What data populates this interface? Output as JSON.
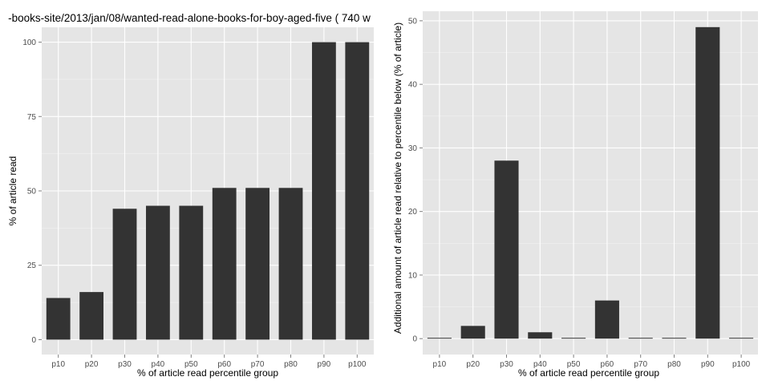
{
  "chart_data": [
    {
      "type": "bar",
      "title": "-books-site/2013/jan/08/wanted-read-alone-books-for-boy-aged-five ( 740 w",
      "xlabel": "% of article read percentile group",
      "ylabel": "% of article read",
      "categories": [
        "p10",
        "p20",
        "p30",
        "p40",
        "p50",
        "p60",
        "p70",
        "p80",
        "p90",
        "p100"
      ],
      "values": [
        14,
        16,
        44,
        45,
        45,
        51,
        51,
        51,
        100,
        100
      ],
      "ylim": [
        -5,
        105
      ],
      "yticks": [
        0,
        25,
        50,
        75,
        100
      ],
      "grid": true,
      "colors": {
        "bar": "#333333",
        "panel": "#e5e5e5"
      }
    },
    {
      "type": "bar",
      "title": "",
      "xlabel": "% of article read percentile group",
      "ylabel": "Additional amount of article read relative to percentile below (% of article)",
      "categories": [
        "p10",
        "p20",
        "p30",
        "p40",
        "p50",
        "p60",
        "p70",
        "p80",
        "p90",
        "p100"
      ],
      "values": [
        0,
        2,
        28,
        1,
        0,
        6,
        0,
        0,
        49,
        0
      ],
      "ylim": [
        -2.5,
        51.5
      ],
      "yticks": [
        0,
        10,
        20,
        30,
        40,
        50
      ],
      "grid": true,
      "colors": {
        "bar": "#333333",
        "panel": "#e5e5e5"
      }
    }
  ]
}
